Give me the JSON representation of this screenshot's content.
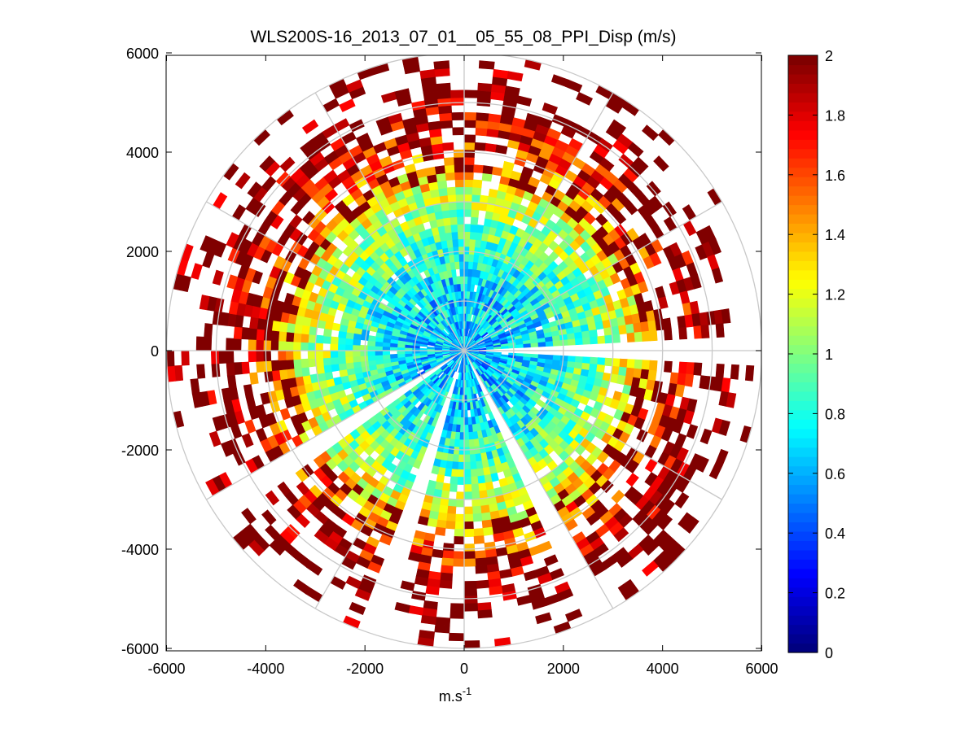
{
  "chart_data": {
    "type": "heatmap",
    "subtype": "polar-ppi",
    "title": "WLS200S-16_2013_07_01__05_55_08_PPI_Disp (m/s)",
    "xlabel": "m.s",
    "xlabel_superscript": "-1",
    "ylabel": "",
    "xlim": [
      -6000,
      6000
    ],
    "ylim": [
      -6000,
      6000
    ],
    "xticks": [
      -6000,
      -4000,
      -2000,
      0,
      2000,
      4000,
      6000
    ],
    "yticks": [
      6000,
      4000,
      2000,
      0,
      -2000,
      -4000,
      -6000
    ],
    "xtick_labels": [
      "-6000",
      "-4000",
      "-2000",
      "0",
      "2000",
      "4000",
      "6000"
    ],
    "ytick_labels": [
      "6000",
      "4000",
      "2000",
      "0",
      "-2000",
      "-4000",
      "-6000"
    ],
    "colorbar": {
      "min": 0,
      "max": 2,
      "ticks": [
        2,
        1.8,
        1.6,
        1.4,
        1.2,
        1,
        0.8,
        0.6,
        0.4,
        0.2,
        0
      ],
      "tick_labels": [
        "2",
        "1.8",
        "1.6",
        "1.4",
        "1.2",
        "1",
        "0.8",
        "0.6",
        "0.4",
        "0.2",
        "0"
      ],
      "colormap": "jet",
      "levels": 64
    },
    "polar_grid": {
      "ring_radii": [
        1000,
        2000,
        3000,
        4000,
        5000,
        6000
      ],
      "spoke_angles_deg": [
        0,
        30,
        60,
        90,
        120,
        150,
        180,
        210,
        240,
        270,
        300,
        330
      ]
    },
    "field_description": {
      "max_range_m": 6000,
      "range_gate_m": 150,
      "azimuth_step_deg": 3,
      "gap_sectors_deg": [
        [
          88,
          92
        ],
        [
          151,
          155
        ],
        [
          196,
          200
        ],
        [
          235,
          239
        ]
      ],
      "radial_mean_profile": [
        [
          0,
          0.6
        ],
        [
          1500,
          0.72
        ],
        [
          2500,
          0.95
        ],
        [
          3300,
          1.2
        ],
        [
          4000,
          1.55
        ],
        [
          4600,
          1.8
        ],
        [
          5200,
          2.0
        ],
        [
          6000,
          2.0
        ]
      ]
    }
  },
  "colors": {
    "grid": "#c8c8c8",
    "axes": "#000000",
    "background": "#ffffff"
  }
}
